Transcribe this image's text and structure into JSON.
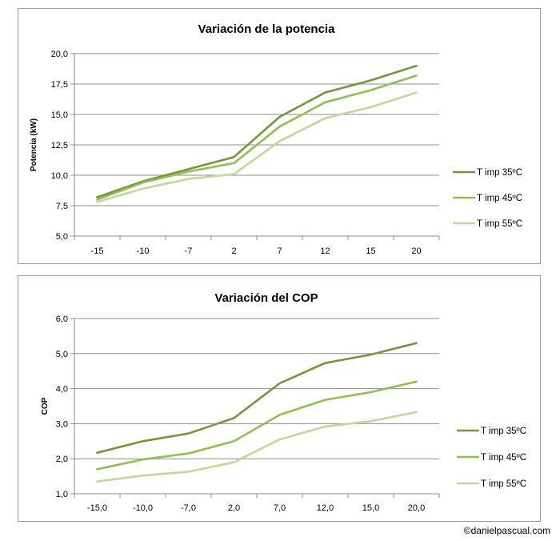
{
  "credit": "©danielpascual.com",
  "chart_data": [
    {
      "type": "line",
      "title": "Variación de la potencia",
      "xlabel": "",
      "ylabel": "Potencia (kW)",
      "categories": [
        "-15",
        "-10",
        "-7",
        "2",
        "7",
        "12",
        "15",
        "20"
      ],
      "ylim": [
        5.0,
        20.0
      ],
      "yticks": [
        "5,0",
        "7,5",
        "10,0",
        "12,5",
        "15,0",
        "17,5",
        "20,0"
      ],
      "ytick_values": [
        5.0,
        7.5,
        10.0,
        12.5,
        15.0,
        17.5,
        20.0
      ],
      "grid": true,
      "legend": "right",
      "series": [
        {
          "name": "T imp 35ºC",
          "color": "#77933c",
          "values": [
            8.2,
            9.5,
            10.5,
            11.5,
            14.8,
            16.8,
            17.8,
            19.0
          ]
        },
        {
          "name": "T imp 45ºC",
          "color": "#92c050",
          "values": [
            8.0,
            9.4,
            10.3,
            11.0,
            14.0,
            16.0,
            17.0,
            18.2
          ]
        },
        {
          "name": "T imp 55ºC",
          "color": "#c3d69b",
          "values": [
            7.8,
            8.9,
            9.7,
            10.1,
            12.8,
            14.7,
            15.6,
            16.8
          ]
        }
      ]
    },
    {
      "type": "line",
      "title": "Variación del COP",
      "xlabel": "",
      "ylabel": "COP",
      "categories": [
        "-15,0",
        "-10,0",
        "-7,0",
        "2,0",
        "7,0",
        "12,0",
        "15,0",
        "20,0"
      ],
      "ylim": [
        1.0,
        6.0
      ],
      "yticks": [
        "1,0",
        "2,0",
        "3,0",
        "4,0",
        "5,0",
        "6,0"
      ],
      "ytick_values": [
        1.0,
        2.0,
        3.0,
        4.0,
        5.0,
        6.0
      ],
      "grid": true,
      "legend": "right",
      "series": [
        {
          "name": "T imp 35ºC",
          "color": "#77933c",
          "values": [
            2.17,
            2.5,
            2.72,
            3.16,
            4.15,
            4.73,
            4.97,
            5.3
          ]
        },
        {
          "name": "T imp 45ºC",
          "color": "#92c050",
          "values": [
            1.7,
            1.98,
            2.15,
            2.5,
            3.25,
            3.68,
            3.9,
            4.2
          ]
        },
        {
          "name": "T imp 55ºC",
          "color": "#c3d69b",
          "values": [
            1.35,
            1.52,
            1.63,
            1.9,
            2.55,
            2.92,
            3.07,
            3.33
          ]
        }
      ]
    }
  ]
}
